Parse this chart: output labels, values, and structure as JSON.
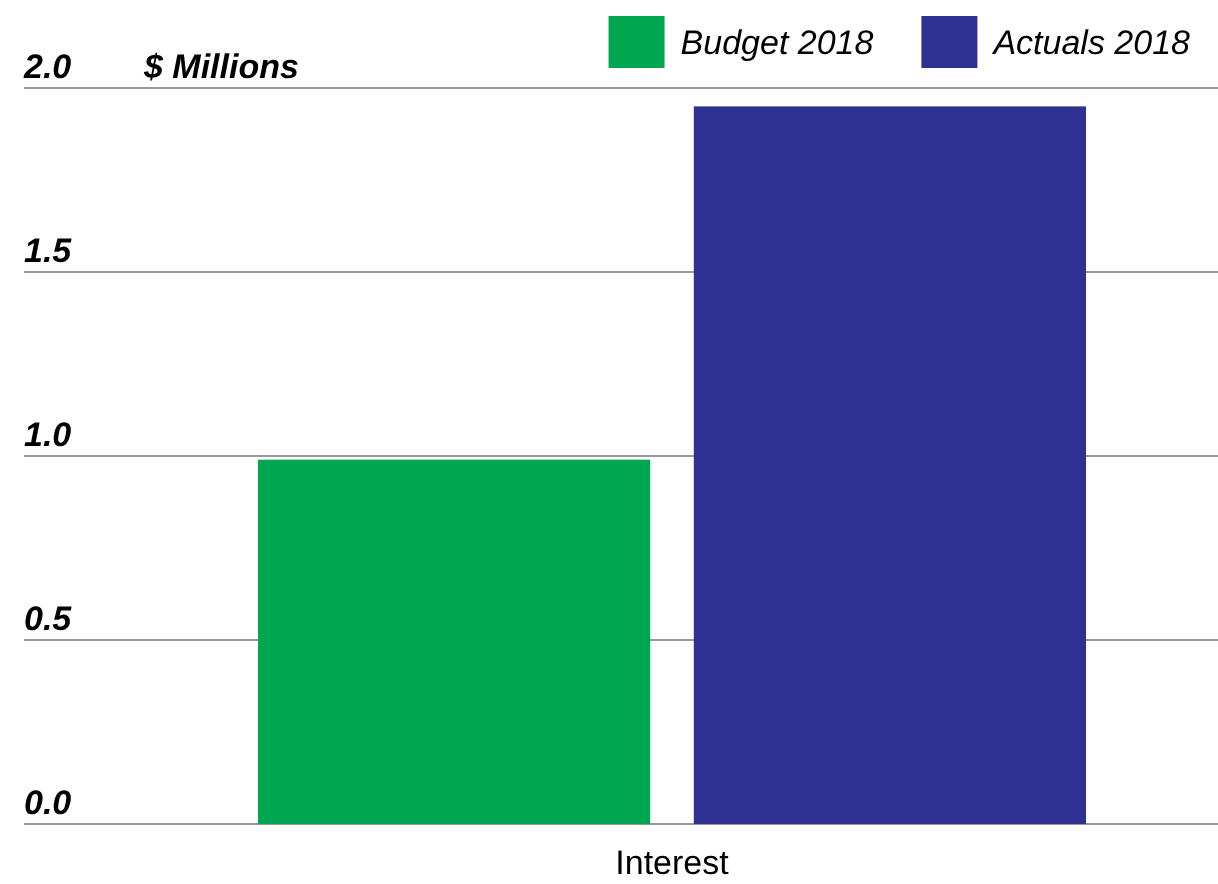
{
  "chart_data": {
    "type": "bar",
    "ylabel": "$ Millions",
    "categories": [
      "Interest"
    ],
    "series": [
      {
        "name": "Budget 2018",
        "color": "#00a650",
        "values": [
          0.99
        ]
      },
      {
        "name": "Actuals 2018",
        "color": "#2e3192",
        "values": [
          1.95
        ]
      }
    ],
    "ylim": [
      0,
      2.0
    ],
    "yticks": [
      {
        "value": 0,
        "label": "0.0"
      },
      {
        "value": 0.5,
        "label": "0.5"
      },
      {
        "value": 1,
        "label": "1.0"
      },
      {
        "value": 1.5,
        "label": "1.5"
      },
      {
        "value": 2,
        "label": "2.0"
      }
    ],
    "grid": "y",
    "legend": "top right"
  }
}
